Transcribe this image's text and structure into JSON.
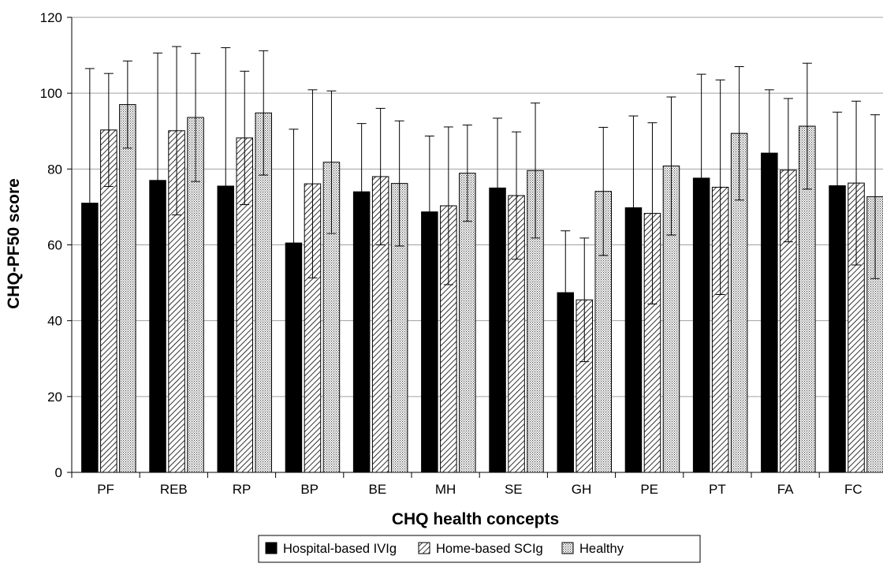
{
  "chart_data": {
    "type": "bar",
    "title": "",
    "xlabel": "CHQ health concepts",
    "ylabel": "CHQ-PF50 score",
    "ylim": [
      0,
      120
    ],
    "yticks": [
      0,
      20,
      40,
      60,
      80,
      100,
      120
    ],
    "grid": true,
    "legend_position": "bottom",
    "categories": [
      "PF",
      "REB",
      "RP",
      "BP",
      "BE",
      "MH",
      "SE",
      "GH",
      "PE",
      "PT",
      "FA",
      "FC"
    ],
    "series": [
      {
        "name": "Hospital-based IVIg",
        "pattern": "solid-black",
        "values": [
          71,
          77,
          75.5,
          60.5,
          74,
          68.7,
          75,
          47.4,
          69.8,
          77.6,
          84.2,
          75.6
        ],
        "error": [
          35.5,
          33.6,
          36.5,
          30,
          18,
          20,
          18.4,
          16.3,
          24.2,
          27.4,
          16.7,
          19.4
        ]
      },
      {
        "name": "Home-based SCIg",
        "pattern": "diagonal-hatch",
        "values": [
          90.3,
          90.1,
          88.2,
          76.1,
          78,
          70.3,
          73,
          45.5,
          68.3,
          75.2,
          79.7,
          76.3
        ],
        "error": [
          14.9,
          22.2,
          17.6,
          24.8,
          18,
          20.8,
          16.8,
          16.3,
          23.9,
          28.3,
          18.9,
          21.6
        ]
      },
      {
        "name": "Healthy",
        "pattern": "dotted",
        "values": [
          97,
          93.6,
          94.8,
          81.8,
          76.2,
          78.9,
          79.6,
          74.1,
          80.8,
          89.4,
          91.3,
          72.7
        ],
        "error": [
          11.5,
          16.9,
          16.4,
          18.8,
          16.5,
          12.7,
          17.8,
          16.9,
          18.2,
          17.6,
          16.6,
          21.6
        ]
      }
    ]
  },
  "colors": {
    "bar_outline": "#000000",
    "gridline": "#a0a0a0",
    "background": "#ffffff"
  }
}
